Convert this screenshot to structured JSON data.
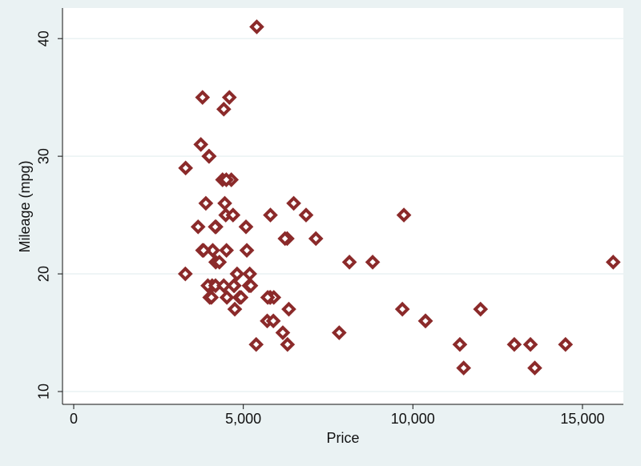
{
  "chart_data": {
    "type": "scatter",
    "x_label": "Price",
    "y_label": "Mileage (mpg)",
    "x": [
      4099,
      4749,
      3799,
      4816,
      7827,
      5788,
      4453,
      5189,
      10372,
      4082,
      11385,
      14500,
      15906,
      3299,
      5705,
      4504,
      5104,
      3667,
      3955,
      3984,
      4010,
      5886,
      6342,
      4389,
      4187,
      11497,
      13594,
      13466,
      3829,
      5379,
      6165,
      4516,
      6303,
      3291,
      8814,
      5172,
      4733,
      4890,
      4181,
      4195,
      10371,
      4647,
      4425,
      4482,
      6486,
      4060,
      5798,
      4934,
      5222,
      4723,
      4424,
      4172,
      9690,
      6295,
      9735,
      6229,
      4589,
      5079,
      8129,
      4296,
      5799,
      4499,
      3995,
      12990,
      3895,
      3798,
      5899,
      3748,
      5719,
      7140,
      5397,
      4697,
      6850,
      11995
    ],
    "values": [
      22,
      17,
      22,
      20,
      15,
      18,
      26,
      20,
      16,
      19,
      14,
      14,
      21,
      29,
      16,
      22,
      22,
      24,
      19,
      30,
      18,
      16,
      17,
      28,
      21,
      12,
      12,
      14,
      22,
      14,
      15,
      18,
      14,
      20,
      21,
      19,
      19,
      18,
      19,
      24,
      16,
      28,
      34,
      25,
      26,
      18,
      18,
      18,
      19,
      19,
      19,
      24,
      17,
      23,
      25,
      23,
      35,
      24,
      21,
      21,
      25,
      28,
      30,
      14,
      26,
      35,
      18,
      31,
      18,
      23,
      41,
      25,
      25,
      17
    ],
    "color": "#8b2a2a",
    "xlim": [
      -331,
      16206
    ],
    "ylim": [
      8.91,
      42.6
    ],
    "xticks": [
      0,
      {
        "value": 5000,
        "label": "5,000"
      },
      {
        "value": 10000,
        "label": "10,000"
      },
      {
        "value": 15000,
        "label": "15,000"
      }
    ],
    "yticks": [
      10,
      20,
      30,
      40
    ],
    "grid": true
  }
}
